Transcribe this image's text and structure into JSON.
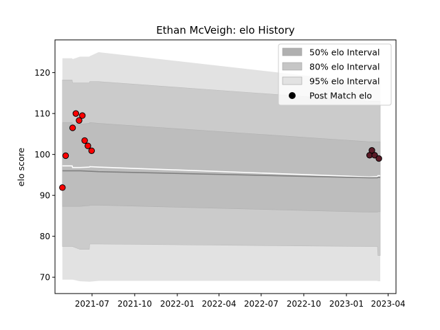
{
  "chart_data": {
    "type": "area",
    "title": "Ethan McVeigh: elo History",
    "xlabel": "",
    "ylabel": "elo score",
    "xlim": [
      "2021-04-12",
      "2023-04-18"
    ],
    "ylim": [
      66,
      128
    ],
    "x_ticks": [
      "2021-07",
      "2021-10",
      "2022-01",
      "2022-04",
      "2022-07",
      "2022-10",
      "2023-01",
      "2023-04"
    ],
    "y_ticks": [
      70,
      80,
      90,
      100,
      110,
      120
    ],
    "grid": false,
    "legend_position": "top-right",
    "legend": [
      {
        "label": "50% elo Interval",
        "kind": "band",
        "color": "#b0b0b0"
      },
      {
        "label": "80% elo Interval",
        "kind": "band",
        "color": "#c6c6c6"
      },
      {
        "label": "95% elo Interval",
        "kind": "band",
        "color": "#e2e2e2"
      },
      {
        "label": "Post Match elo",
        "kind": "marker",
        "color": "#000000"
      }
    ],
    "colors": {
      "band95": "#e2e2e2",
      "band80": "#cbcbcb",
      "band50": "#bdbdbd",
      "mean_line": "#808080",
      "upper_line": "#ffffff",
      "marker_early": "#ff0000",
      "marker_late": "#5a1a26"
    },
    "bands": {
      "x": [
        "2021-04-28",
        "2021-05-19",
        "2021-05-20",
        "2021-06-05",
        "2021-06-25",
        "2021-06-26",
        "2021-07-15",
        "2023-02-20",
        "2023-03-09",
        "2023-03-10",
        "2023-03-15"
      ],
      "mean": [
        96.0,
        96.0,
        96.0,
        96.0,
        95.9,
        95.9,
        95.8,
        94.3,
        94.3,
        94.4,
        94.4
      ],
      "upper_line": [
        97.2,
        97.2,
        96.8,
        96.8,
        96.9,
        97.0,
        96.9,
        94.5,
        94.6,
        94.8,
        94.8
      ],
      "p50_low": [
        87.3,
        87.3,
        87.3,
        87.3,
        87.5,
        87.6,
        87.6,
        85.9,
        85.9,
        86.0,
        86.0
      ],
      "p50_high": [
        107.8,
        107.8,
        107.4,
        107.4,
        107.6,
        107.8,
        107.6,
        103.1,
        103.1,
        103.1,
        103.1
      ],
      "p80_low": [
        77.5,
        77.5,
        77.5,
        76.8,
        76.8,
        78.1,
        78.1,
        77.5,
        77.5,
        75.3,
        75.3
      ],
      "p80_high": [
        118.2,
        118.2,
        117.5,
        117.5,
        117.5,
        117.8,
        117.8,
        113.0,
        113.0,
        113.0,
        113.0
      ],
      "p95_low": [
        69.4,
        69.4,
        69.4,
        69.0,
        68.9,
        68.9,
        69.1,
        69.1,
        69.1,
        69.0,
        69.0
      ],
      "p95_high": [
        123.5,
        123.5,
        123.3,
        123.9,
        123.9,
        124.0,
        125.0,
        117.5,
        117.5,
        117.5,
        117.5
      ]
    },
    "points": [
      {
        "x": "2021-04-28",
        "y": 91.9,
        "period": "early"
      },
      {
        "x": "2021-05-05",
        "y": 99.7,
        "period": "early"
      },
      {
        "x": "2021-05-20",
        "y": 106.5,
        "period": "early"
      },
      {
        "x": "2021-05-27",
        "y": 110.0,
        "period": "early"
      },
      {
        "x": "2021-06-03",
        "y": 108.3,
        "period": "early"
      },
      {
        "x": "2021-06-10",
        "y": 109.5,
        "period": "early"
      },
      {
        "x": "2021-06-15",
        "y": 103.4,
        "period": "early"
      },
      {
        "x": "2021-06-22",
        "y": 102.1,
        "period": "early"
      },
      {
        "x": "2021-06-30",
        "y": 100.9,
        "period": "early"
      },
      {
        "x": "2023-02-20",
        "y": 99.8,
        "period": "late"
      },
      {
        "x": "2023-02-25",
        "y": 101.0,
        "period": "late"
      },
      {
        "x": "2023-03-03",
        "y": 99.8,
        "period": "late"
      },
      {
        "x": "2023-03-12",
        "y": 99.0,
        "period": "late"
      }
    ]
  }
}
